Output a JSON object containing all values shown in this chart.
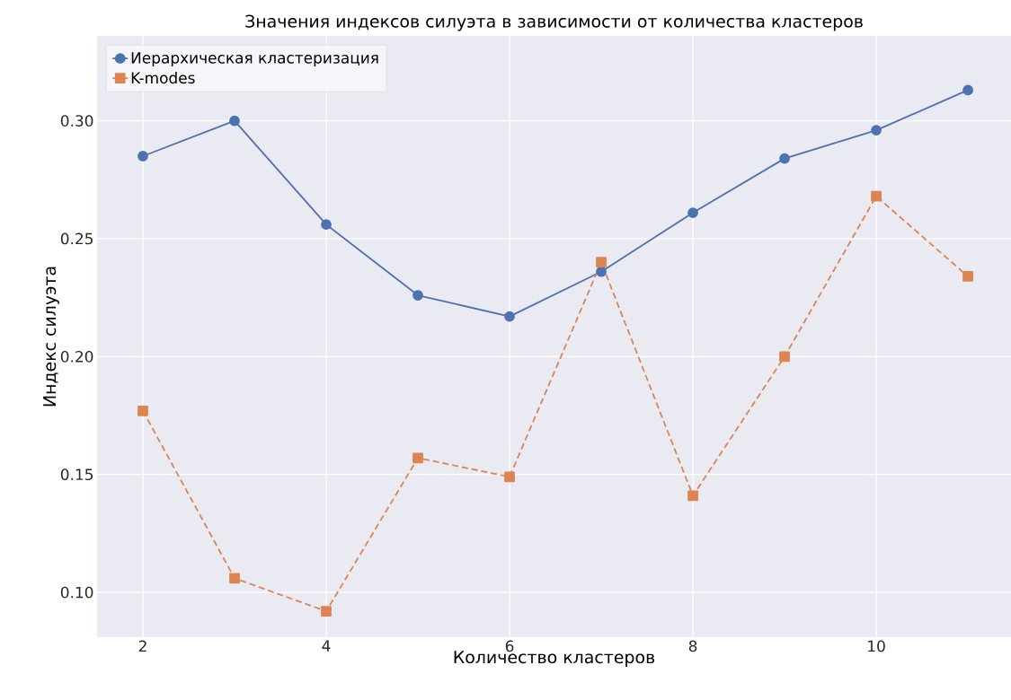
{
  "chart_data": {
    "type": "line",
    "title": "Значения индексов силуэта в зависимости от количества кластеров",
    "xlabel": "Количество кластеров",
    "ylabel": "Индекс силуэта",
    "x": [
      2,
      3,
      4,
      5,
      6,
      7,
      8,
      9,
      10,
      11
    ],
    "series": [
      {
        "name": "Иерархическая кластеризация",
        "color": "#4c72b0",
        "marker": "circle",
        "line_style": "solid",
        "values": [
          0.285,
          0.3,
          0.256,
          0.226,
          0.217,
          0.236,
          0.261,
          0.284,
          0.296,
          0.313
        ]
      },
      {
        "name": "K-modes",
        "color": "#dd8452",
        "marker": "square",
        "line_style": "dashed",
        "values": [
          0.177,
          0.106,
          0.092,
          0.157,
          0.149,
          0.24,
          0.141,
          0.2,
          0.268,
          0.234
        ]
      }
    ],
    "xlim": [
      1.5,
      11.47
    ],
    "ylim": [
      0.081,
      0.336
    ],
    "xticks": [
      2,
      4,
      6,
      8,
      10
    ],
    "yticks": [
      {
        "value": 0.1,
        "label": "0.10"
      },
      {
        "value": 0.15,
        "label": "0.15"
      },
      {
        "value": 0.2,
        "label": "0.20"
      },
      {
        "value": 0.25,
        "label": "0.25"
      },
      {
        "value": 0.3,
        "label": "0.30"
      }
    ],
    "grid": true,
    "legend": "top left"
  }
}
